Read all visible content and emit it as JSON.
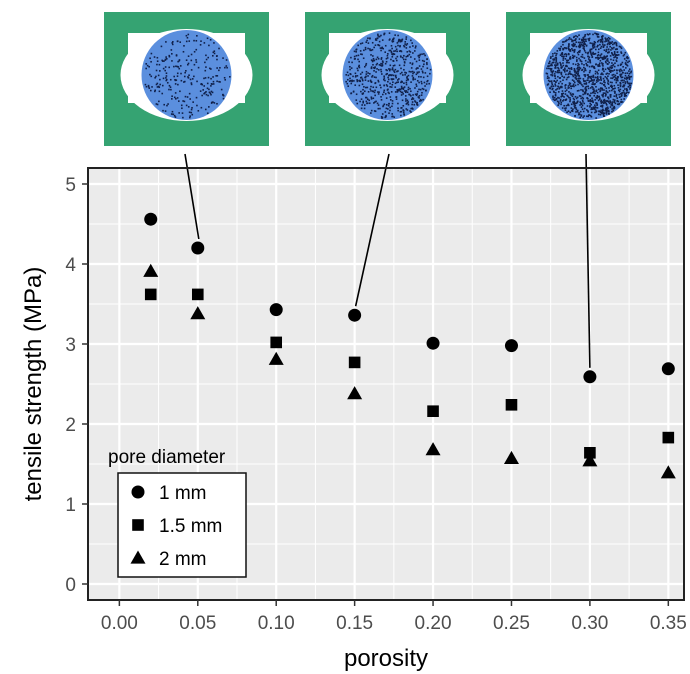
{
  "chart_data": {
    "type": "scatter",
    "xlabel": "porosity",
    "ylabel": "tensile strength (MPa)",
    "xlim": [
      -0.02,
      0.36
    ],
    "ylim": [
      -0.2,
      5.2
    ],
    "xticks": [
      0.0,
      0.05,
      0.1,
      0.15,
      0.2,
      0.25,
      0.3,
      0.35
    ],
    "xtick_labels": [
      "0.00",
      "0.05",
      "0.10",
      "0.15",
      "0.20",
      "0.25",
      "0.30",
      "0.35"
    ],
    "yticks": [
      0,
      1,
      2,
      3,
      4,
      5
    ],
    "ytick_labels": [
      "0",
      "1",
      "2",
      "3",
      "4",
      "5"
    ],
    "grid": true,
    "legend_title": "pore diameter",
    "legend_position": "bottom-left",
    "series": [
      {
        "name": "1 mm",
        "marker": "circle",
        "x": [
          0.02,
          0.05,
          0.1,
          0.15,
          0.2,
          0.25,
          0.3,
          0.35
        ],
        "y": [
          4.56,
          4.2,
          3.43,
          3.36,
          3.01,
          2.98,
          2.59,
          2.69
        ]
      },
      {
        "name": "1.5 mm",
        "marker": "square",
        "x": [
          0.02,
          0.05,
          0.1,
          0.15,
          0.2,
          0.25,
          0.3,
          0.35
        ],
        "y": [
          3.62,
          3.62,
          3.02,
          2.77,
          2.16,
          2.24,
          1.64,
          1.83
        ]
      },
      {
        "name": "2 mm",
        "marker": "triangle",
        "x": [
          0.02,
          0.05,
          0.1,
          0.15,
          0.2,
          0.25,
          0.3,
          0.35
        ],
        "y": [
          3.91,
          3.38,
          2.81,
          2.38,
          1.68,
          1.57,
          1.54,
          1.39
        ]
      }
    ],
    "insets": [
      {
        "pore_density": "low",
        "callout_point": {
          "x": 0.05,
          "y": 4.2
        }
      },
      {
        "pore_density": "medium",
        "callout_point": {
          "x": 0.15,
          "y": 3.36
        }
      },
      {
        "pore_density": "high",
        "callout_point": {
          "x": 0.3,
          "y": 2.59
        }
      }
    ]
  },
  "colors": {
    "panel_background": "#ebebeb",
    "grid": "#ffffff",
    "specimen_green": "#35a372",
    "pore_blue": "#5b8fde",
    "marker": "#000000"
  }
}
